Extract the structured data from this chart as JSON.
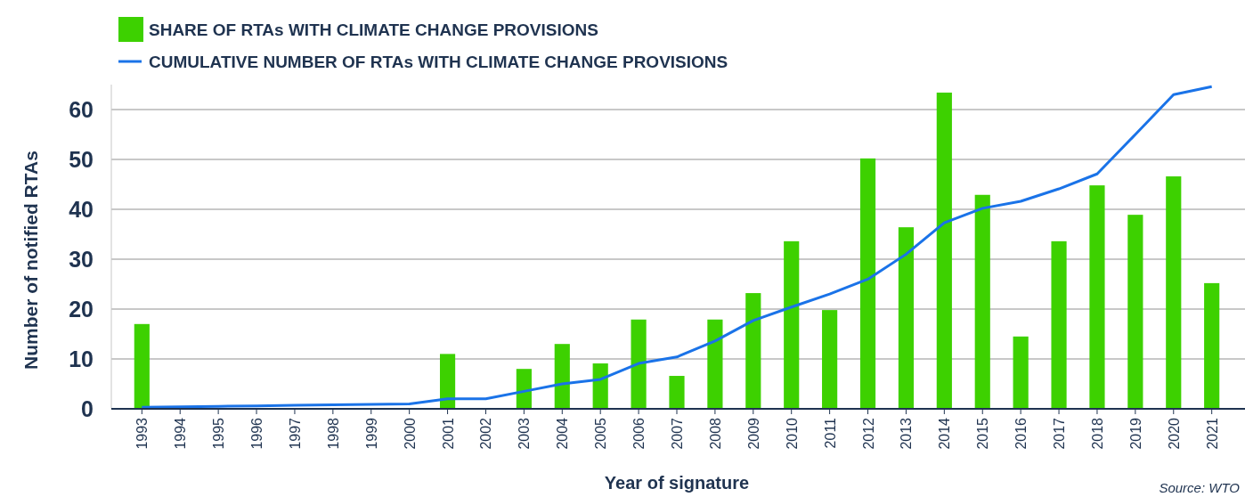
{
  "chart_data": {
    "type": "bar",
    "xlabel": "Year of signature",
    "ylabel": "Number of notified RTAs",
    "categories": [
      "1993",
      "1994",
      "1995",
      "1996",
      "1997",
      "1998",
      "1999",
      "2000",
      "2001",
      "2002",
      "2003",
      "2004",
      "2005",
      "2006",
      "2007",
      "2008",
      "2009",
      "2010",
      "2011",
      "2012",
      "2013",
      "2014",
      "2015",
      "2016",
      "2017",
      "2018",
      "2019",
      "2020",
      "2021"
    ],
    "series": [
      {
        "name": "SHARE OF RTAs WITH CLIMATE CHANGE PROVISIONS",
        "color": "#3dd100",
        "values": [
          17,
          null,
          null,
          null,
          null,
          null,
          null,
          null,
          11,
          null,
          8,
          13,
          9.1,
          17.9,
          6.6,
          17.9,
          23.2,
          33.6,
          19.8,
          50.2,
          36.4,
          63.4,
          42.9,
          14.5,
          33.6,
          44.8,
          38.9,
          46.6,
          25.2
        ]
      },
      {
        "name": "CUMULATIVE NUMBER OF RTAs WITH CLIMATE CHANGE PROVISIONS",
        "type": "line",
        "color": "#1a73e8",
        "values": [
          0.3,
          0.4,
          0.5,
          0.6,
          0.7,
          0.8,
          0.9,
          1,
          2,
          2,
          3.5,
          5,
          5.9,
          9.1,
          10.4,
          13.6,
          17.7,
          20.4,
          23,
          26,
          31,
          37.3,
          40.2,
          41.6,
          44.1,
          47.1,
          55,
          63,
          64.6
        ]
      }
    ],
    "ylim": [
      0,
      65
    ],
    "yticks": [
      0,
      10,
      20,
      30,
      40,
      50,
      60
    ],
    "grid": "y",
    "legend": "top left",
    "marker": "none",
    "annotations": [
      "Source: WTO"
    ]
  }
}
